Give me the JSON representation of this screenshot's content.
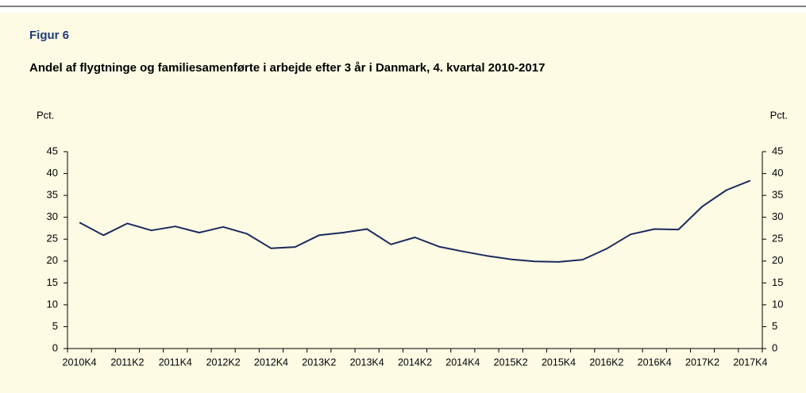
{
  "chart_data": {
    "type": "line",
    "figure_label": "Figur 6",
    "title": "Andel af flygtninge og familiesamenførte i arbejde efter 3 år i Danmark, 4. kvartal 2010-2017",
    "ylabel": "Pct.",
    "y2label": "Pct.",
    "categories": [
      "2010K4",
      null,
      "2011K2",
      null,
      "2011K4",
      null,
      "2012K2",
      null,
      "2012K4",
      null,
      "2013K2",
      null,
      "2013K4",
      null,
      "2014K2",
      null,
      "2014K4",
      null,
      "2015K2",
      null,
      "2015K4",
      null,
      "2016K2",
      null,
      "2016K4",
      null,
      "2017K2",
      null,
      "2017K4"
    ],
    "series": [
      {
        "color": "#1b2a5e",
        "values": [
          28.8,
          25.9,
          28.6,
          27.0,
          27.9,
          26.5,
          27.8,
          26.2,
          22.9,
          23.2,
          25.9,
          26.5,
          27.3,
          23.8,
          25.4,
          23.3,
          22.2,
          21.2,
          20.4,
          19.9,
          19.8,
          20.3,
          22.8,
          26.1,
          27.3,
          27.2,
          32.5,
          36.2,
          38.4
        ]
      }
    ],
    "ylim": [
      0,
      45
    ],
    "yticks": [
      0,
      5,
      10,
      15,
      20,
      25,
      30,
      35,
      40,
      45
    ],
    "y2lim": [
      0,
      45
    ],
    "y2ticks": [
      0,
      5,
      10,
      15,
      20,
      25,
      30,
      35,
      40,
      45
    ],
    "background": "#fdfbe4",
    "grid": false
  }
}
